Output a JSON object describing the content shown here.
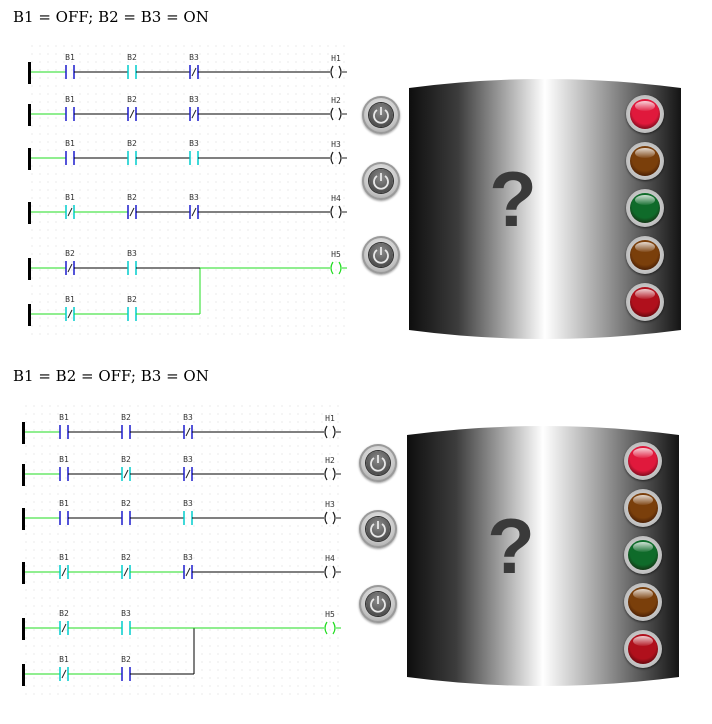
{
  "panels": [
    {
      "caption": "B1 = OFF; B2 = B3 = ON",
      "question": "?",
      "rungs": [
        {
          "contacts": [
            {
              "label": "B1",
              "type": "NO"
            },
            {
              "label": "B2",
              "type": "NO"
            },
            {
              "label": "B3",
              "type": "NC"
            }
          ],
          "coil": "H1"
        },
        {
          "contacts": [
            {
              "label": "B1",
              "type": "NO"
            },
            {
              "label": "B2",
              "type": "NC"
            },
            {
              "label": "B3",
              "type": "NC"
            }
          ],
          "coil": "H2"
        },
        {
          "contacts": [
            {
              "label": "B1",
              "type": "NO"
            },
            {
              "label": "B2",
              "type": "NO"
            },
            {
              "label": "B3",
              "type": "NO"
            }
          ],
          "coil": "H3"
        },
        {
          "contacts": [
            {
              "label": "B1",
              "type": "NC"
            },
            {
              "label": "B2",
              "type": "NC"
            },
            {
              "label": "B3",
              "type": "NC"
            }
          ],
          "coil": "H4"
        },
        {
          "contacts": [
            {
              "label": "B2",
              "type": "NC"
            },
            {
              "label": "B3",
              "type": "NO"
            }
          ],
          "coil": "H5",
          "parallel": [
            {
              "label": "B1",
              "type": "NC"
            },
            {
              "label": "B2",
              "type": "NO"
            }
          ]
        }
      ],
      "lamp_colors": [
        "#e0193c",
        "#7a3f0b",
        "#0f6b2a",
        "#7a3f0b",
        "#b0101c"
      ]
    },
    {
      "caption": "B1 = B2 = OFF; B3 = ON",
      "question": "?",
      "rungs": [
        {
          "contacts": [
            {
              "label": "B1",
              "type": "NO"
            },
            {
              "label": "B2",
              "type": "NO"
            },
            {
              "label": "B3",
              "type": "NC"
            }
          ],
          "coil": "H1"
        },
        {
          "contacts": [
            {
              "label": "B1",
              "type": "NO"
            },
            {
              "label": "B2",
              "type": "NC"
            },
            {
              "label": "B3",
              "type": "NC"
            }
          ],
          "coil": "H2"
        },
        {
          "contacts": [
            {
              "label": "B1",
              "type": "NO"
            },
            {
              "label": "B2",
              "type": "NO"
            },
            {
              "label": "B3",
              "type": "NO"
            }
          ],
          "coil": "H3"
        },
        {
          "contacts": [
            {
              "label": "B1",
              "type": "NC"
            },
            {
              "label": "B2",
              "type": "NC"
            },
            {
              "label": "B3",
              "type": "NC"
            }
          ],
          "coil": "H4"
        },
        {
          "contacts": [
            {
              "label": "B2",
              "type": "NC"
            },
            {
              "label": "B3",
              "type": "NO"
            }
          ],
          "coil": "H5",
          "parallel": [
            {
              "label": "B1",
              "type": "NC"
            },
            {
              "label": "B2",
              "type": "NO"
            }
          ]
        }
      ],
      "lamp_colors": [
        "#e0193c",
        "#7a3f0b",
        "#0f6b2a",
        "#7a3f0b",
        "#b0101c"
      ]
    }
  ],
  "colors": {
    "energized": "#22dd22",
    "deenergized": "#000000",
    "contact_on": "#00cccc",
    "contact_off": "#1a1acc"
  }
}
